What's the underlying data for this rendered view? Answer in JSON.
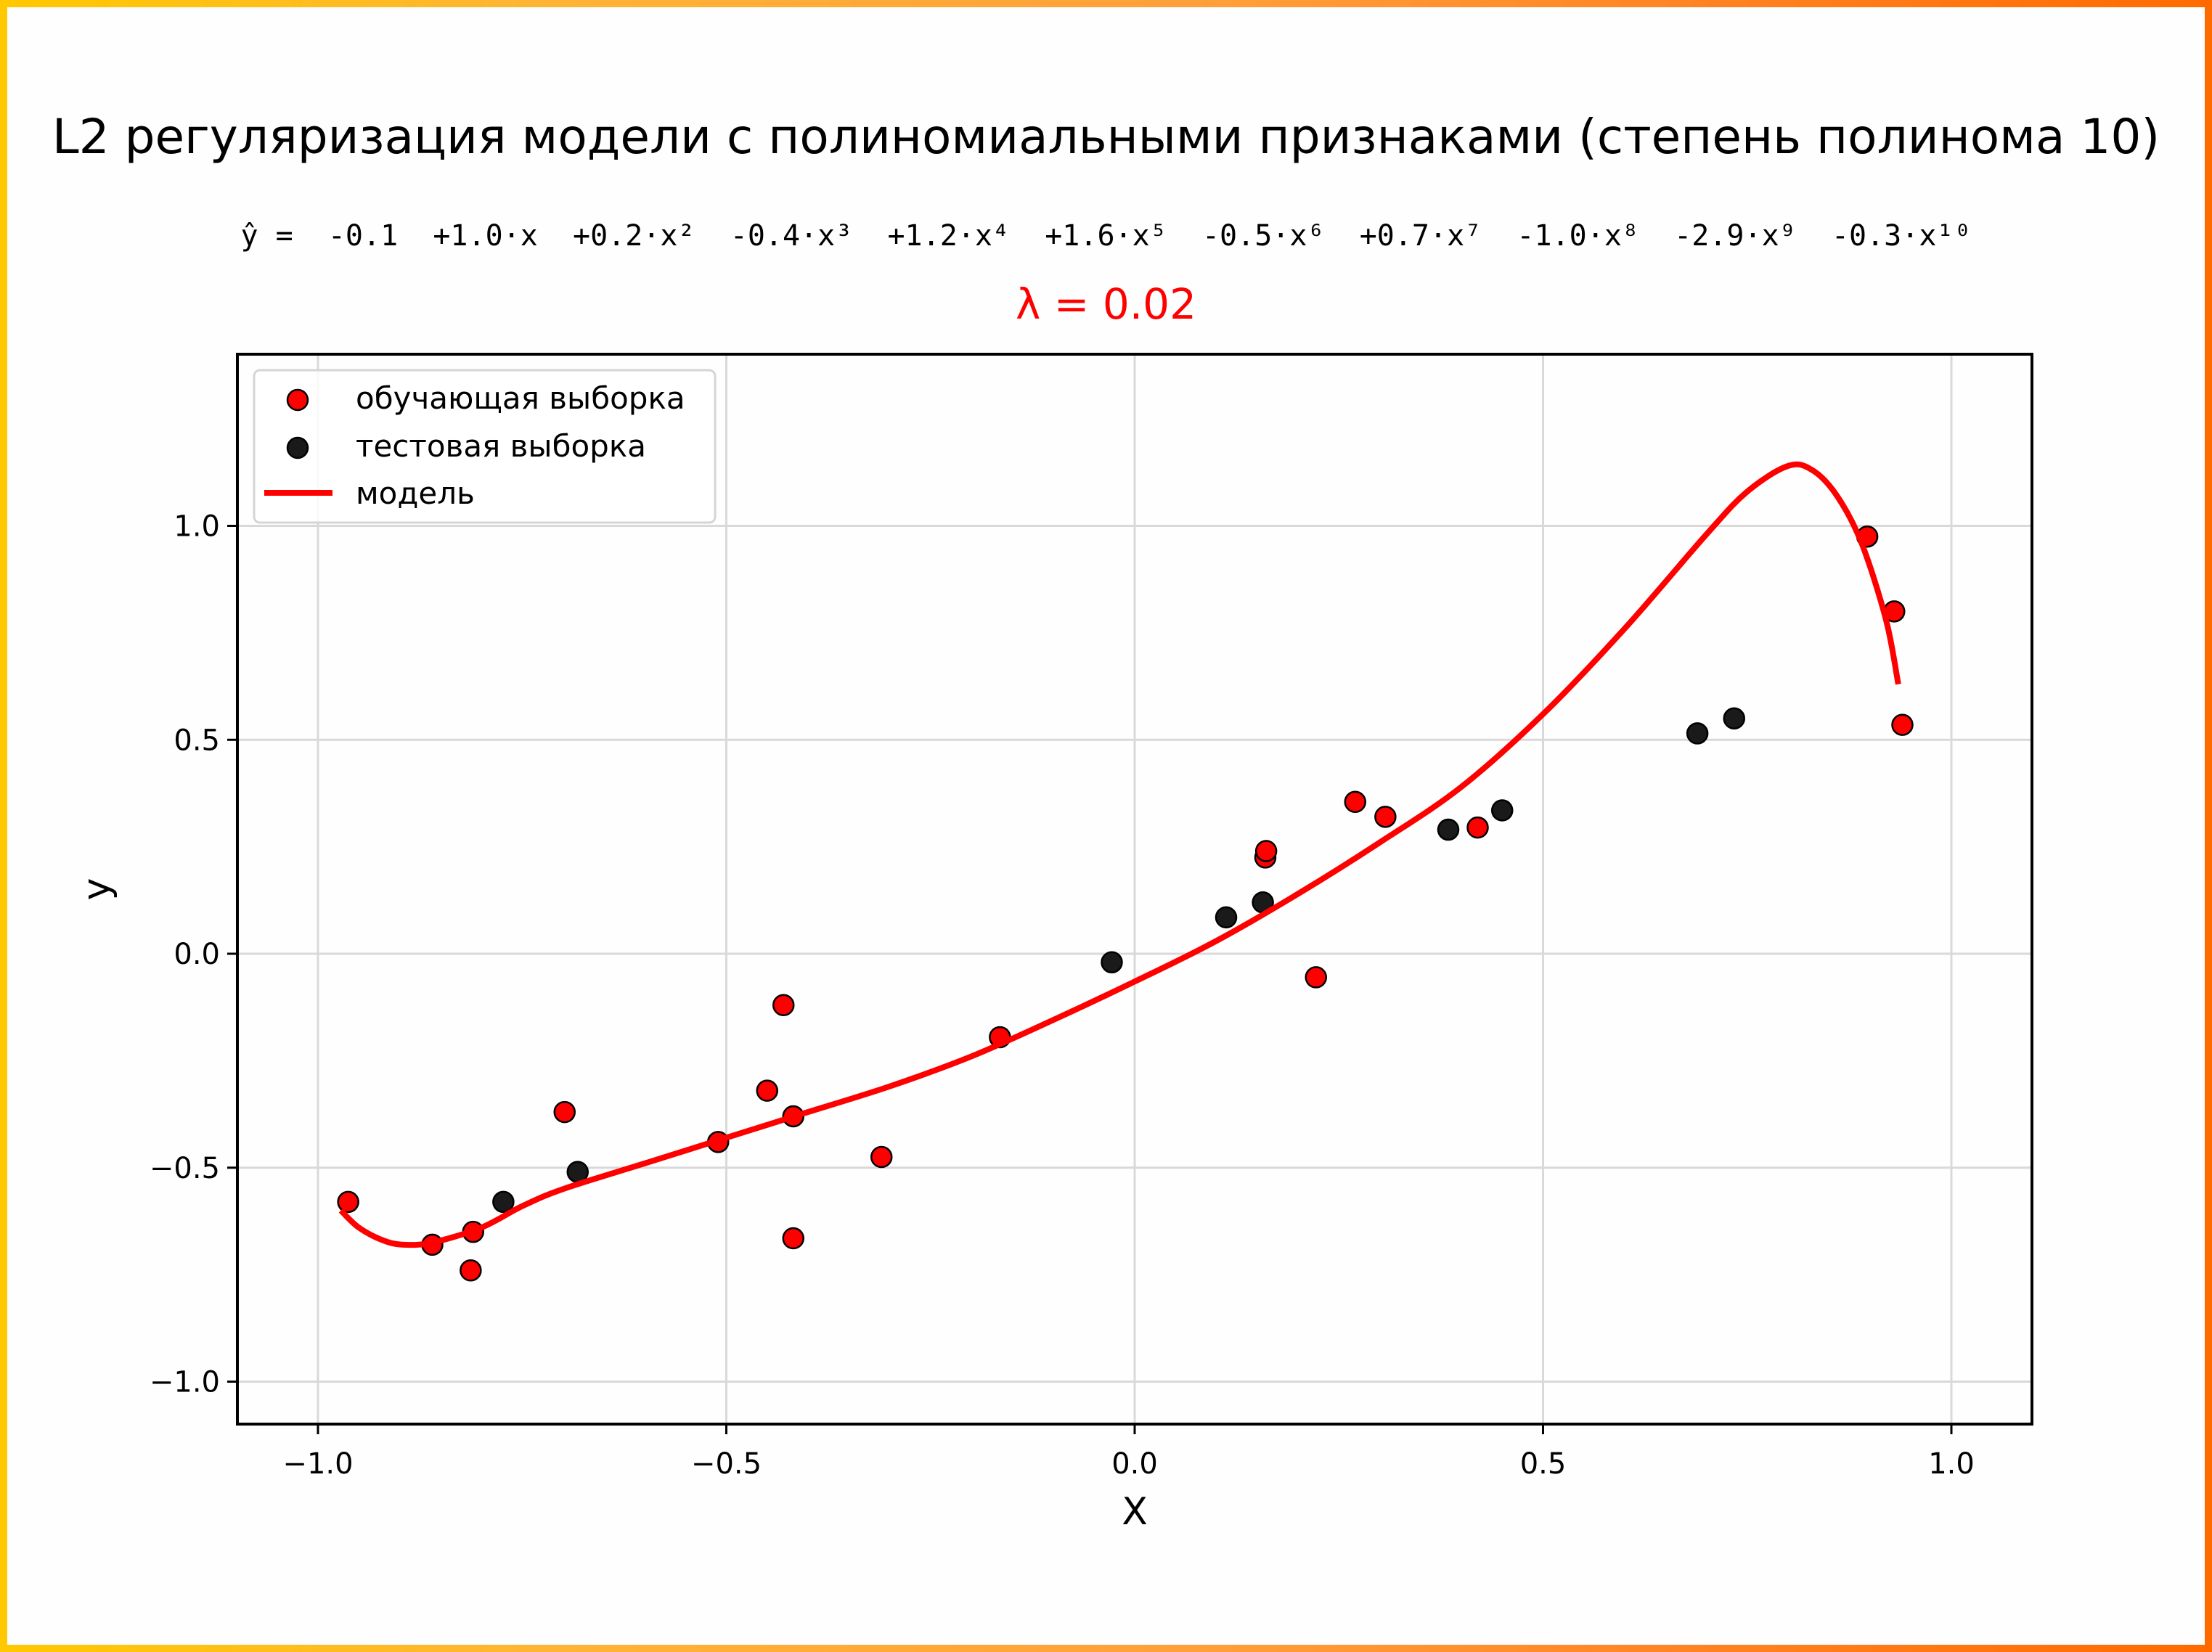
{
  "header": {
    "title": "L2 регуляризация модели с полиномиальными признаками (степень полинома 10)",
    "equation": "ŷ =  -0.1  +1.0·x  +0.2·x²  -0.4·x³  +1.2·x⁴  +1.6·x⁵  -0.5·x⁶  +0.7·x⁷  -1.0·x⁸  -2.9·x⁹  -0.3·x¹⁰",
    "lambda_label": "λ = 0.02"
  },
  "legend": {
    "items": [
      {
        "label": "обучающая выборка",
        "marker": "circle",
        "color": "#ff0000"
      },
      {
        "label": "тестовая выборка",
        "marker": "circle",
        "color": "#1a1a1a"
      },
      {
        "label": "модель",
        "marker": "line",
        "color": "#ff0000"
      }
    ]
  },
  "colors": {
    "train": "#ff0000",
    "test": "#1a1a1a",
    "model": "#ff0000",
    "lambda": "#ff0000",
    "grid": "#d9d9d9",
    "border_start": "#FFC800",
    "border_end": "#FF6A00"
  },
  "chart_data": {
    "type": "scatter",
    "title": "L2 регуляризация модели с полиномиальными признаками (степень полинома 10)",
    "subtitle": "ŷ =  -0.1  +1.0·x  +0.2·x²  -0.4·x³  +1.2·x⁴  +1.6·x⁵  -0.5·x⁶  +0.7·x⁷  -1.0·x⁸  -2.9·x⁹  -0.3·x¹⁰",
    "annotation": "λ = 0.02",
    "xlabel": "X",
    "ylabel": "y",
    "xlim": [
      -1.1,
      1.1
    ],
    "ylim": [
      -1.1,
      1.4
    ],
    "xticks": [
      -1.0,
      -0.5,
      0.0,
      0.5,
      1.0
    ],
    "xtick_labels": [
      "−1.0",
      "−0.5",
      "0.0",
      "0.5",
      "1.0"
    ],
    "yticks": [
      -1.0,
      -0.5,
      0.0,
      0.5,
      1.0
    ],
    "ytick_labels": [
      "−1.0",
      "−0.5",
      "0.0",
      "0.5",
      "1.0"
    ],
    "grid": true,
    "legend_position": "upper left",
    "series": [
      {
        "name": "обучающая выборка",
        "type": "scatter",
        "color": "#ff0000",
        "points": [
          [
            -0.963,
            -0.58
          ],
          [
            -0.86,
            -0.68
          ],
          [
            -0.81,
            -0.65
          ],
          [
            -0.813,
            -0.74
          ],
          [
            -0.698,
            -0.37
          ],
          [
            -0.51,
            -0.44
          ],
          [
            -0.45,
            -0.32
          ],
          [
            -0.43,
            -0.12
          ],
          [
            -0.418,
            -0.38
          ],
          [
            -0.418,
            -0.665
          ],
          [
            -0.31,
            -0.475
          ],
          [
            -0.165,
            -0.195
          ],
          [
            0.16,
            0.225
          ],
          [
            0.161,
            0.24
          ],
          [
            0.222,
            -0.055
          ],
          [
            0.27,
            0.355
          ],
          [
            0.307,
            0.32
          ],
          [
            0.42,
            0.295
          ],
          [
            0.897,
            0.975
          ],
          [
            0.93,
            0.8
          ],
          [
            0.94,
            0.535
          ]
        ]
      },
      {
        "name": "тестовая выборка",
        "type": "scatter",
        "color": "#1a1a1a",
        "points": [
          [
            -0.773,
            -0.58
          ],
          [
            -0.682,
            -0.51
          ],
          [
            -0.028,
            -0.02
          ],
          [
            0.112,
            0.085
          ],
          [
            0.157,
            0.12
          ],
          [
            0.384,
            0.29
          ],
          [
            0.45,
            0.335
          ],
          [
            0.689,
            0.515
          ],
          [
            0.734,
            0.55
          ]
        ]
      },
      {
        "name": "модель",
        "type": "line",
        "color": "#ff0000",
        "points": [
          [
            -0.972,
            -0.6
          ],
          [
            -0.95,
            -0.64
          ],
          [
            -0.92,
            -0.67
          ],
          [
            -0.895,
            -0.68
          ],
          [
            -0.86,
            -0.675
          ],
          [
            -0.8,
            -0.64
          ],
          [
            -0.75,
            -0.59
          ],
          [
            -0.7,
            -0.55
          ],
          [
            -0.6,
            -0.49
          ],
          [
            -0.5,
            -0.43
          ],
          [
            -0.4,
            -0.37
          ],
          [
            -0.3,
            -0.31
          ],
          [
            -0.2,
            -0.24
          ],
          [
            -0.1,
            -0.155
          ],
          [
            0.0,
            -0.065
          ],
          [
            0.1,
            0.03
          ],
          [
            0.2,
            0.14
          ],
          [
            0.3,
            0.26
          ],
          [
            0.4,
            0.39
          ],
          [
            0.5,
            0.56
          ],
          [
            0.6,
            0.76
          ],
          [
            0.7,
            0.98
          ],
          [
            0.75,
            1.08
          ],
          [
            0.8,
            1.14
          ],
          [
            0.83,
            1.13
          ],
          [
            0.86,
            1.07
          ],
          [
            0.89,
            0.96
          ],
          [
            0.92,
            0.78
          ],
          [
            0.935,
            0.63
          ]
        ]
      }
    ]
  }
}
